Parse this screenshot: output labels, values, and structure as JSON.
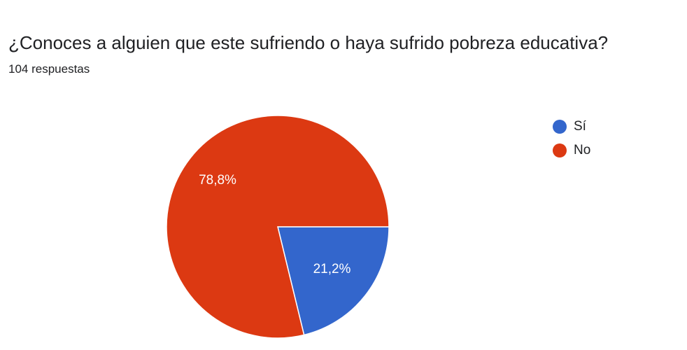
{
  "header": {
    "title": "¿Conoces a alguien que este sufriendo o haya sufrido pobreza educativa?",
    "subtitle": "104 respuestas"
  },
  "legend": {
    "placement": "right",
    "items": [
      {
        "label": "Sí",
        "color": "#3366cc"
      },
      {
        "label": "No",
        "color": "#dc3912"
      }
    ]
  },
  "chart_data": {
    "type": "pie",
    "title": "¿Conoces a alguien que este sufriendo o haya sufrido pobreza educativa?",
    "subtitle": "104 respuestas",
    "slices": [
      {
        "label": "Sí",
        "value": 21.2,
        "display": "21,2%",
        "color": "#3366cc"
      },
      {
        "label": "No",
        "value": 78.8,
        "display": "78,8%",
        "color": "#dc3912"
      }
    ]
  }
}
